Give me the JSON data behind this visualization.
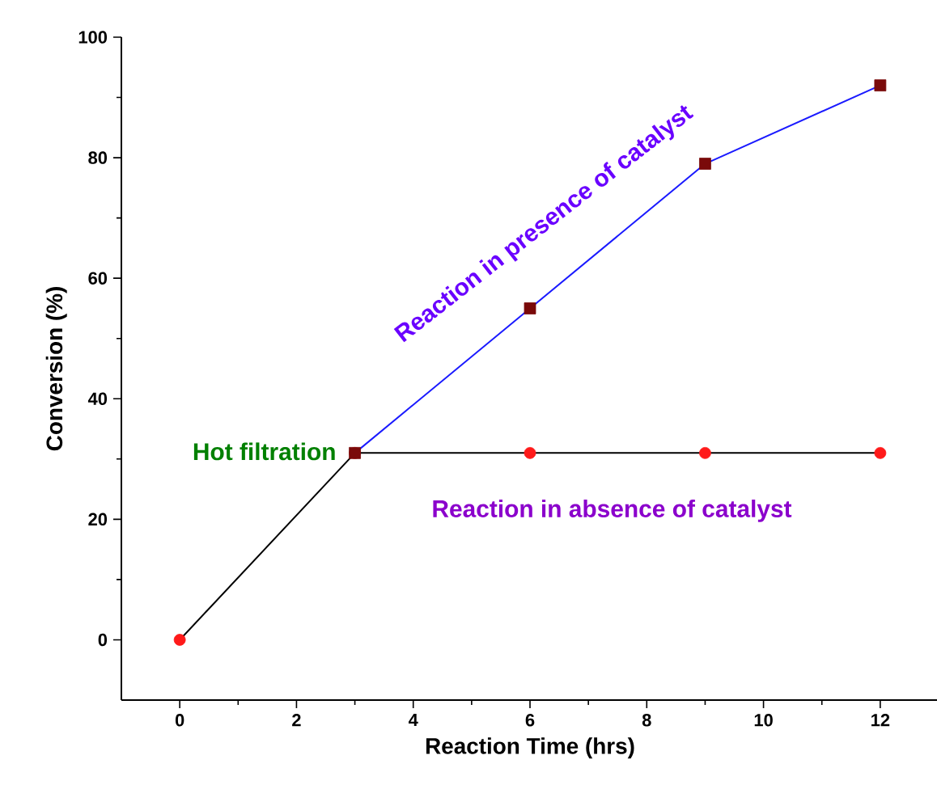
{
  "chart_data": {
    "type": "line",
    "xlabel": "Reaction Time (hrs)",
    "ylabel": "Conversion (%)",
    "xlim": [
      -1,
      13
    ],
    "ylim": [
      -10,
      100
    ],
    "xticks": [
      0,
      2,
      4,
      6,
      8,
      10,
      12
    ],
    "yticks": [
      0,
      20,
      40,
      60,
      80,
      100
    ],
    "series": [
      {
        "name": "Reaction in presence of catalyst",
        "color": "#1a1aff",
        "colors": [
          "#7a0a0a",
          "#7a0a0a",
          "#7a0a0a",
          "#7a0a0a"
        ],
        "marker": "square",
        "x": [
          3,
          6,
          9,
          12
        ],
        "values": [
          31,
          55,
          79,
          92
        ]
      },
      {
        "name": "Reaction in absence of catalyst",
        "color": "#000000",
        "colors": [
          "#ff1a1a",
          "#ff1a1a",
          "#ff1a1a",
          "#ff1a1a",
          "#ff1a1a"
        ],
        "marker": "circle",
        "x": [
          0,
          3,
          6,
          9,
          12
        ],
        "values": [
          0,
          31,
          31,
          31,
          31
        ]
      }
    ],
    "annotations": [
      {
        "text": "Hot filtration",
        "x": 3,
        "y": 31
      }
    ]
  }
}
